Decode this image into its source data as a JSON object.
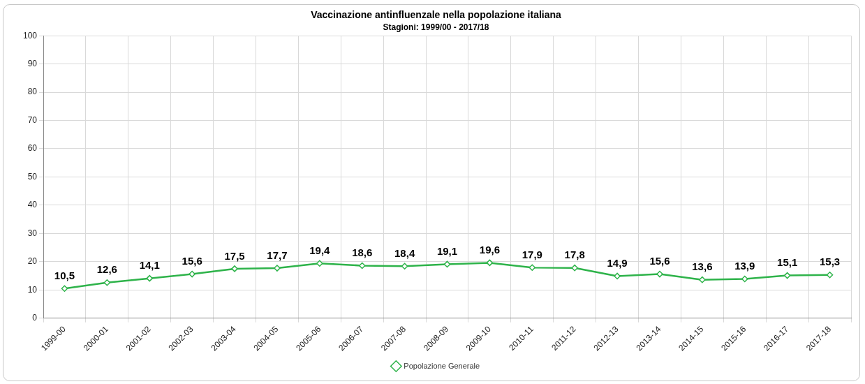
{
  "chart_data": {
    "type": "line",
    "title": "Vaccinazione antinfluenzale nella popolazione italiana",
    "subtitle": "Stagioni: 1999/00 - 2017/18",
    "categories": [
      "1999-00",
      "2000-01",
      "2001-02",
      "2002-03",
      "2003-04",
      "2004-05",
      "2005-06",
      "2006-07",
      "2007-08",
      "2008-09",
      "2009-10",
      "2010-11",
      "2011-12",
      "2012-13",
      "2013-14",
      "2014-15",
      "2015-16",
      "2016-17",
      "2017-18"
    ],
    "series": [
      {
        "name": "Popolazione Generale",
        "color": "#2eb34a",
        "values": [
          10.5,
          12.6,
          14.1,
          15.6,
          17.5,
          17.7,
          19.4,
          18.6,
          18.4,
          19.1,
          19.6,
          17.9,
          17.8,
          14.9,
          15.6,
          13.6,
          13.9,
          15.1,
          15.3
        ],
        "value_labels": [
          "10,5",
          "12,6",
          "14,1",
          "15,6",
          "17,5",
          "17,7",
          "19,4",
          "18,6",
          "18,4",
          "19,1",
          "19,6",
          "17,9",
          "17,8",
          "14,9",
          "15,6",
          "13,6",
          "13,9",
          "15,1",
          "15,3"
        ]
      }
    ],
    "ylim": [
      0,
      100
    ],
    "yticks": [
      0,
      10,
      20,
      30,
      40,
      50,
      60,
      70,
      80,
      90,
      100
    ],
    "grid": true,
    "legend": "bottom",
    "marker": "diamond",
    "line_style": "solid"
  }
}
